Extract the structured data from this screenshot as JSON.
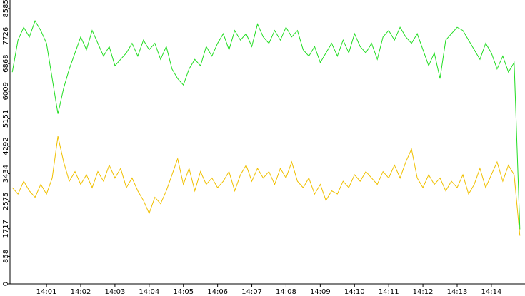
{
  "chart_data": {
    "type": "line",
    "x": [
      0,
      10,
      20,
      30,
      40,
      50,
      60,
      70,
      80,
      90,
      100,
      110,
      120,
      130,
      140,
      150,
      160,
      170,
      180,
      190,
      200,
      210,
      220,
      230,
      240,
      250,
      260,
      270,
      280,
      290,
      300,
      310,
      320,
      330,
      340,
      350,
      360,
      370,
      380,
      390,
      400,
      410,
      420,
      430,
      440,
      450,
      460,
      470,
      480,
      490,
      500,
      510,
      520,
      530,
      540,
      550,
      560,
      570,
      580,
      590,
      600,
      610,
      620,
      630,
      640,
      650,
      660,
      670,
      680,
      690,
      700,
      710,
      720,
      730,
      740,
      750,
      760,
      770,
      780,
      790,
      800,
      810,
      820,
      830,
      840,
      850,
      860,
      870,
      880,
      890
    ],
    "series": [
      {
        "color": "#22dd22",
        "values": [
          6600,
          7600,
          8000,
          7700,
          8200,
          7900,
          7500,
          6400,
          5300,
          6100,
          6700,
          7200,
          7700,
          7300,
          7900,
          7500,
          7100,
          7400,
          6800,
          7000,
          7200,
          7500,
          7100,
          7600,
          7300,
          7500,
          7000,
          7400,
          6700,
          6400,
          6200,
          6700,
          7000,
          6800,
          7400,
          7100,
          7500,
          7800,
          7300,
          7900,
          7600,
          7800,
          7400,
          8100,
          7700,
          7500,
          7900,
          7600,
          8000,
          7700,
          7900,
          7300,
          7100,
          7400,
          6900,
          7200,
          7500,
          7100,
          7600,
          7200,
          7800,
          7400,
          7200,
          7500,
          7000,
          7700,
          7900,
          7600,
          8000,
          7700,
          7500,
          7800,
          7300,
          6800,
          7200,
          6400,
          7600,
          7800,
          8000,
          7900,
          7600,
          7300,
          7000,
          7500,
          7200,
          6700,
          7100,
          6600,
          6900,
          1700
        ]
      },
      {
        "color": "#f0c000",
        "values": [
          3000,
          2800,
          3200,
          2900,
          2700,
          3100,
          2800,
          3300,
          4600,
          3800,
          3200,
          3500,
          3100,
          3400,
          3000,
          3500,
          3200,
          3700,
          3300,
          3600,
          3000,
          3300,
          2900,
          2600,
          2200,
          2700,
          2500,
          2900,
          3400,
          3900,
          3100,
          3600,
          2900,
          3500,
          3100,
          3300,
          3000,
          3200,
          3500,
          2900,
          3400,
          3700,
          3200,
          3600,
          3300,
          3500,
          3100,
          3600,
          3300,
          3800,
          3200,
          3000,
          3300,
          2800,
          3100,
          2600,
          2900,
          2800,
          3200,
          3000,
          3400,
          3200,
          3500,
          3300,
          3100,
          3500,
          3300,
          3700,
          3300,
          3800,
          4200,
          3300,
          3000,
          3400,
          3100,
          3300,
          2900,
          3200,
          3000,
          3400,
          2800,
          3100,
          3600,
          3000,
          3400,
          3800,
          3200,
          3700,
          3400,
          1500
        ]
      }
    ],
    "xlim": [
      -4,
      899
    ],
    "ylim": [
      0,
      8850
    ],
    "yticks": [
      0,
      858,
      1717,
      2575,
      3434,
      4292,
      5151,
      6009,
      6868,
      7726,
      8585
    ],
    "xticks": [
      {
        "value": 60,
        "label": "14:01"
      },
      {
        "value": 120,
        "label": "14:02"
      },
      {
        "value": 180,
        "label": "14:03"
      },
      {
        "value": 240,
        "label": "14:04"
      },
      {
        "value": 300,
        "label": "14:05"
      },
      {
        "value": 360,
        "label": "14:06"
      },
      {
        "value": 420,
        "label": "14:07"
      },
      {
        "value": 480,
        "label": "14:08"
      },
      {
        "value": 540,
        "label": "14:09"
      },
      {
        "value": 600,
        "label": "14:10"
      },
      {
        "value": 660,
        "label": "14:11"
      },
      {
        "value": 720,
        "label": "14:12"
      },
      {
        "value": 780,
        "label": "14:13"
      },
      {
        "value": 840,
        "label": "14:14"
      }
    ]
  }
}
